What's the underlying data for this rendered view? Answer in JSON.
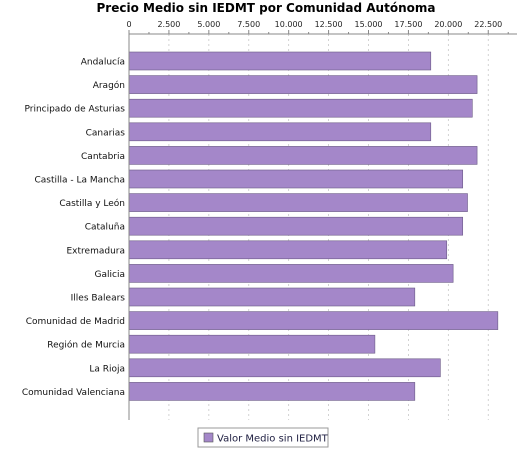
{
  "chart_data": {
    "type": "bar",
    "orientation": "horizontal",
    "title": "Precio Medio sin IEDMT por Comunidad Autónoma",
    "categories": [
      "Andalucía",
      "Aragón",
      "Principado de Asturias",
      "Canarias",
      "Cantabria",
      "Castilla - La Mancha",
      "Castilla y León",
      "Cataluña",
      "Extremadura",
      "Galicia",
      "Illes Balears",
      "Comunidad de Madrid",
      "Región de Murcia",
      "La Rioja",
      "Comunidad Valenciana"
    ],
    "series": [
      {
        "name": "Valor Medio sin IEDMT",
        "color": "#a487c9",
        "values": [
          18900,
          21800,
          21500,
          18900,
          21800,
          20900,
          21200,
          20900,
          19900,
          20300,
          17900,
          23100,
          15400,
          19500,
          17900
        ]
      }
    ],
    "x_axis": {
      "position": "top",
      "range": [
        0,
        24300
      ],
      "ticks": [
        "0",
        "2.500",
        "5.000",
        "7.500",
        "10.000",
        "12.500",
        "15.000",
        "17.500",
        "20.000",
        "22.500"
      ],
      "tick_values": [
        0,
        2500,
        5000,
        7500,
        10000,
        12500,
        15000,
        17500,
        20000,
        22500
      ]
    },
    "grid": "vertical dashed",
    "legend": "bottom"
  }
}
